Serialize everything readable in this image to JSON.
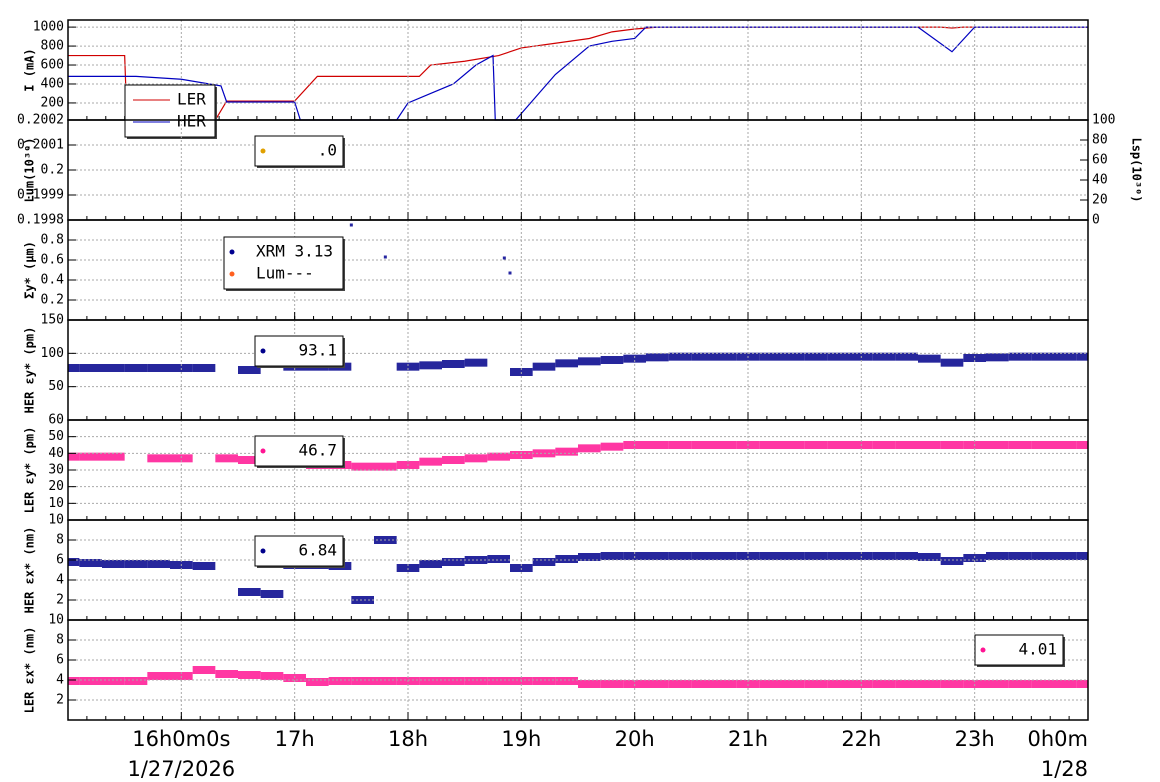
{
  "x_axis": {
    "xlim": [
      15,
      24
    ],
    "xticks": [
      {
        "value": 16,
        "label": "16h0m0s"
      },
      {
        "value": 17,
        "label": "17h"
      },
      {
        "value": 18,
        "label": "18h"
      },
      {
        "value": 19,
        "label": "19h"
      },
      {
        "value": 20,
        "label": "20h"
      },
      {
        "value": 21,
        "label": "21h"
      },
      {
        "value": 22,
        "label": "22h"
      },
      {
        "value": 23,
        "label": "23h"
      },
      {
        "value": 24,
        "label": "0h0m"
      }
    ],
    "date_labels": [
      {
        "value": 16,
        "label": "1/27/2026"
      },
      {
        "value": 24,
        "label": "1/28"
      }
    ]
  },
  "chart_data": [
    {
      "type": "line",
      "ylabel": "I (mA)",
      "ylim": [
        20,
        1075
      ],
      "yticks": [
        200,
        400,
        600,
        800,
        1000
      ],
      "grid": true,
      "series": [
        {
          "name": "LER",
          "color": "#d00000",
          "x": [
            15.0,
            15.5,
            15.52,
            16.3,
            16.4,
            17.0,
            17.2,
            18.1,
            18.2,
            18.5,
            18.8,
            19.0,
            19.3,
            19.6,
            19.8,
            20.0,
            20.2,
            22.7,
            22.8,
            22.9,
            24.0
          ],
          "values": [
            700,
            700,
            20,
            20,
            220,
            220,
            480,
            480,
            600,
            640,
            700,
            780,
            830,
            880,
            950,
            980,
            1000,
            1000,
            990,
            1000,
            1000
          ]
        },
        {
          "name": "HER",
          "color": "#0000c0",
          "x": [
            15.0,
            15.6,
            16.0,
            16.35,
            16.4,
            17.0,
            17.05,
            17.9,
            18.0,
            18.2,
            18.4,
            18.6,
            18.75,
            18.77,
            18.95,
            19.3,
            19.6,
            19.8,
            20.0,
            20.1,
            22.5,
            22.8,
            23.0,
            24.0
          ],
          "values": [
            480,
            480,
            450,
            380,
            210,
            210,
            20,
            20,
            200,
            300,
            400,
            600,
            700,
            20,
            20,
            500,
            800,
            850,
            880,
            1000,
            1000,
            740,
            1000,
            1000
          ]
        }
      ]
    },
    {
      "type": "scatter",
      "ylabel": "Lum(10³⁰)",
      "ylim": [
        0.1998,
        0.2002
      ],
      "yticks": [
        0.1998,
        0.1999,
        0.2,
        0.2001,
        0.2002
      ],
      "grid": true,
      "y2label": "Lsp(10³⁰)",
      "y2lim": [
        0,
        100
      ],
      "y2ticks": [
        0,
        20,
        40,
        60,
        80,
        100
      ],
      "series": [
        {
          "name": ".0",
          "color": "#e0a000",
          "x": [],
          "values": []
        }
      ]
    },
    {
      "type": "scatter",
      "ylabel": "Σy* (μm)",
      "ylim": [
        0,
        1
      ],
      "yticks": [
        0.2,
        0.4,
        0.6,
        0.8
      ],
      "grid": true,
      "series": [
        {
          "name": "XRM 3.13",
          "color": "#000090",
          "x": [
            17.5,
            17.8,
            18.85,
            18.9
          ],
          "values": [
            0.95,
            0.63,
            0.62,
            0.47
          ]
        },
        {
          "name": "Lum---",
          "color": "#ff6020",
          "x": [],
          "values": []
        }
      ]
    },
    {
      "type": "scatter",
      "ylabel": "HER εy* (pm)",
      "ylim": [
        0,
        150
      ],
      "yticks": [
        50,
        100,
        150
      ],
      "grid": true,
      "x": [
        15.0,
        15.2,
        15.4,
        15.6,
        15.8,
        16.0,
        16.2,
        16.4,
        16.6,
        16.8,
        17.0,
        17.2,
        17.4,
        17.6,
        17.8,
        18.0,
        18.2,
        18.4,
        18.6,
        18.8,
        19.0,
        19.2,
        19.4,
        19.6,
        19.8,
        20.0,
        20.2,
        20.4,
        20.6,
        20.8,
        21.0,
        21.2,
        21.4,
        21.6,
        21.8,
        22.0,
        22.2,
        22.4,
        22.6,
        22.8,
        23.0,
        23.2,
        23.4,
        23.6,
        23.8,
        24.0
      ],
      "series": [
        {
          "name": "93.1",
          "color": "#00008b",
          "values": [
            78,
            78,
            78,
            78,
            78,
            78,
            78,
            null,
            75,
            null,
            80,
            80,
            80,
            null,
            null,
            80,
            82,
            84,
            86,
            null,
            72,
            80,
            85,
            88,
            90,
            92,
            94,
            95,
            95,
            95,
            95,
            95,
            95,
            95,
            95,
            95,
            95,
            95,
            92,
            86,
            93,
            94,
            95,
            95,
            95,
            95
          ]
        }
      ]
    },
    {
      "type": "scatter",
      "ylabel": "LER εy* (pm)",
      "ylim": [
        0,
        60
      ],
      "yticks": [
        10,
        20,
        30,
        40,
        50,
        60
      ],
      "grid": true,
      "x": [
        15.0,
        15.2,
        15.4,
        15.6,
        15.8,
        16.0,
        16.2,
        16.4,
        16.6,
        16.8,
        17.0,
        17.2,
        17.4,
        17.6,
        17.8,
        18.0,
        18.2,
        18.4,
        18.6,
        18.8,
        19.0,
        19.2,
        19.4,
        19.6,
        19.8,
        20.0,
        20.2,
        20.4,
        20.6,
        20.8,
        21.0,
        21.2,
        21.4,
        21.6,
        21.8,
        22.0,
        22.2,
        22.4,
        22.6,
        22.8,
        23.0,
        23.2,
        23.4,
        23.6,
        23.8,
        24.0
      ],
      "series": [
        {
          "name": "46.7",
          "color": "#ff1493",
          "values": [
            38,
            38,
            38,
            null,
            37,
            37,
            null,
            37,
            36,
            35,
            34,
            33,
            33,
            32,
            32,
            33,
            35,
            36,
            37,
            38,
            39,
            40,
            41,
            43,
            44,
            45,
            45,
            45,
            45,
            45,
            45,
            45,
            45,
            45,
            45,
            45,
            45,
            45,
            45,
            45,
            45,
            45,
            45,
            45,
            45,
            45
          ]
        }
      ]
    },
    {
      "type": "scatter",
      "ylabel": "HER εx* (nm)",
      "ylim": [
        0,
        10
      ],
      "yticks": [
        2,
        4,
        6,
        8,
        10
      ],
      "grid": true,
      "x": [
        15.0,
        15.2,
        15.4,
        15.6,
        15.8,
        16.0,
        16.2,
        16.4,
        16.6,
        16.8,
        17.0,
        17.2,
        17.4,
        17.6,
        17.8,
        18.0,
        18.2,
        18.4,
        18.6,
        18.8,
        19.0,
        19.2,
        19.4,
        19.6,
        19.8,
        20.0,
        20.2,
        20.4,
        20.6,
        20.8,
        21.0,
        21.2,
        21.4,
        21.6,
        21.8,
        22.0,
        22.2,
        22.4,
        22.6,
        22.8,
        23.0,
        23.2,
        23.4,
        23.6,
        23.8,
        24.0
      ],
      "series": [
        {
          "name": "6.84",
          "color": "#00008b",
          "values": [
            5.8,
            5.7,
            5.6,
            5.6,
            5.6,
            5.5,
            5.4,
            null,
            2.8,
            2.6,
            5.5,
            5.5,
            5.4,
            2,
            8,
            5.2,
            5.6,
            5.8,
            6.0,
            6.1,
            5.2,
            5.8,
            6.1,
            6.3,
            6.4,
            6.4,
            6.4,
            6.4,
            6.4,
            6.4,
            6.4,
            6.4,
            6.4,
            6.4,
            6.4,
            6.4,
            6.4,
            6.4,
            6.3,
            5.9,
            6.2,
            6.4,
            6.4,
            6.4,
            6.4,
            6.4
          ]
        }
      ]
    },
    {
      "type": "scatter",
      "ylabel": "LER εx* (nm)",
      "ylim": [
        0,
        10
      ],
      "yticks": [
        2,
        4,
        6,
        8,
        10
      ],
      "grid": true,
      "x": [
        15.0,
        15.2,
        15.4,
        15.6,
        15.8,
        16.0,
        16.2,
        16.4,
        16.6,
        16.8,
        17.0,
        17.2,
        17.4,
        17.6,
        17.8,
        18.0,
        18.2,
        18.4,
        18.6,
        18.8,
        19.0,
        19.2,
        19.4,
        19.6,
        19.8,
        20.0,
        20.2,
        20.4,
        20.6,
        20.8,
        21.0,
        21.2,
        21.4,
        21.6,
        21.8,
        22.0,
        22.2,
        22.4,
        22.6,
        22.8,
        23.0,
        23.2,
        23.4,
        23.6,
        23.8,
        24.0
      ],
      "series": [
        {
          "name": "4.01",
          "color": "#ff1493",
          "values": [
            3.9,
            3.9,
            3.9,
            3.9,
            4.4,
            4.4,
            5,
            4.6,
            4.5,
            4.4,
            4.2,
            3.8,
            3.9,
            3.9,
            3.9,
            3.9,
            3.9,
            3.9,
            3.9,
            3.9,
            3.9,
            3.9,
            3.9,
            3.6,
            3.6,
            3.6,
            3.6,
            3.6,
            3.6,
            3.6,
            3.6,
            3.6,
            3.6,
            3.6,
            3.6,
            3.6,
            3.6,
            3.6,
            3.6,
            3.6,
            3.6,
            3.6,
            3.6,
            3.6,
            3.6,
            3.6
          ]
        }
      ]
    }
  ]
}
